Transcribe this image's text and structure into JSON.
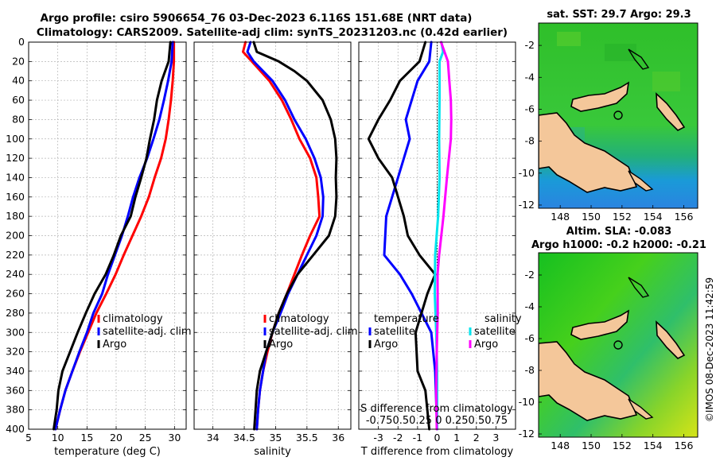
{
  "header": {
    "line1": "Argo profile: csiro 5906654_76 03-Dec-2023 6.116S 151.68E (NRT data)",
    "line2": "Climatology: CARS2009. Satellite-adj clim: synTS_20231203.nc (0.42d earlier)"
  },
  "legend_profile": {
    "clim": "climatology",
    "sat": "satellite-adj. clim",
    "argo": "Argo"
  },
  "legend_diff": {
    "temp_title": "temperature",
    "sal_title": "salinity",
    "satellite": "satellite",
    "argo": "Argo"
  },
  "diff_top_label": "S difference from climatology",
  "diff_top_ticks": "-0.750.50.25 0  0.250.50.75",
  "right": {
    "sst_title": "sat. SST: 29.7 Argo: 29.3",
    "sla_title1": "Altim. SLA: -0.083",
    "sla_title2": "Argo h1000: -0.2 h2000: -0.21"
  },
  "watermark": "©IMOS 08-Dec-2023 11:42:59",
  "colors": {
    "clim": "#ff0000",
    "sat": "#0000ff",
    "argo": "#000000",
    "sal_sat": "#00e5ee",
    "sal_argo": "#ff00ff",
    "land": "#f4c79a"
  },
  "chart_data": [
    {
      "type": "line",
      "xlabel": "temperature (deg C)",
      "ylabel": "",
      "xlim": [
        5,
        32
      ],
      "ylim": [
        400,
        0
      ],
      "xticks": [
        5,
        10,
        15,
        20,
        25,
        30
      ],
      "yticks": [
        0,
        20,
        40,
        60,
        80,
        100,
        120,
        140,
        160,
        180,
        200,
        220,
        240,
        260,
        280,
        300,
        320,
        340,
        360,
        380,
        400
      ],
      "series": [
        {
          "name": "climatology",
          "color": "#ff0000",
          "points": [
            [
              29.9,
              0
            ],
            [
              29.9,
              20
            ],
            [
              29.7,
              40
            ],
            [
              29.4,
              60
            ],
            [
              29.0,
              80
            ],
            [
              28.5,
              100
            ],
            [
              27.7,
              120
            ],
            [
              26.6,
              140
            ],
            [
              25.6,
              160
            ],
            [
              24.3,
              180
            ],
            [
              22.8,
              200
            ],
            [
              21.3,
              220
            ],
            [
              19.9,
              240
            ],
            [
              18.3,
              260
            ],
            [
              16.6,
              280
            ],
            [
              15.2,
              300
            ],
            [
              13.8,
              320
            ],
            [
              12.5,
              340
            ],
            [
              11.3,
              360
            ],
            [
              10.4,
              380
            ],
            [
              9.6,
              400
            ]
          ]
        },
        {
          "name": "satellite-adj. clim",
          "color": "#0000ff",
          "points": [
            [
              29.7,
              0
            ],
            [
              29.5,
              20
            ],
            [
              28.9,
              40
            ],
            [
              28.2,
              60
            ],
            [
              27.4,
              80
            ],
            [
              26.4,
              100
            ],
            [
              25.3,
              120
            ],
            [
              24.0,
              140
            ],
            [
              22.9,
              160
            ],
            [
              22.0,
              180
            ],
            [
              21.0,
              200
            ],
            [
              19.8,
              220
            ],
            [
              18.6,
              240
            ],
            [
              17.6,
              260
            ],
            [
              16.1,
              280
            ],
            [
              15.0,
              300
            ],
            [
              13.7,
              320
            ],
            [
              12.5,
              340
            ],
            [
              11.3,
              360
            ],
            [
              10.4,
              380
            ],
            [
              9.6,
              400
            ]
          ]
        },
        {
          "name": "Argo",
          "color": "#000000",
          "points": [
            [
              29.3,
              0
            ],
            [
              29.0,
              20
            ],
            [
              27.8,
              40
            ],
            [
              27.0,
              60
            ],
            [
              26.5,
              80
            ],
            [
              25.8,
              100
            ],
            [
              25.2,
              120
            ],
            [
              24.3,
              140
            ],
            [
              23.3,
              160
            ],
            [
              22.5,
              180
            ],
            [
              20.8,
              200
            ],
            [
              19.6,
              220
            ],
            [
              18.2,
              240
            ],
            [
              16.3,
              260
            ],
            [
              14.8,
              280
            ],
            [
              13.4,
              300
            ],
            [
              12.1,
              320
            ],
            [
              10.8,
              340
            ],
            [
              10.1,
              360
            ],
            [
              9.8,
              380
            ],
            [
              9.3,
              400
            ]
          ]
        }
      ]
    },
    {
      "type": "line",
      "xlabel": "salinity",
      "xlim": [
        33.7,
        36.2
      ],
      "ylim": [
        400,
        0
      ],
      "xticks": [
        34,
        34.5,
        35,
        35.5,
        36
      ],
      "series": [
        {
          "name": "climatology",
          "color": "#ff0000",
          "points": [
            [
              34.52,
              0
            ],
            [
              34.48,
              10
            ],
            [
              34.62,
              20
            ],
            [
              34.9,
              40
            ],
            [
              35.1,
              60
            ],
            [
              35.25,
              80
            ],
            [
              35.38,
              100
            ],
            [
              35.55,
              120
            ],
            [
              35.65,
              140
            ],
            [
              35.68,
              160
            ],
            [
              35.7,
              180
            ],
            [
              35.55,
              200
            ],
            [
              35.42,
              220
            ],
            [
              35.3,
              240
            ],
            [
              35.18,
              260
            ],
            [
              35.05,
              280
            ],
            [
              34.95,
              300
            ],
            [
              34.87,
              320
            ],
            [
              34.8,
              340
            ],
            [
              34.75,
              360
            ],
            [
              34.72,
              380
            ],
            [
              34.7,
              400
            ]
          ]
        },
        {
          "name": "satellite-adj. clim",
          "color": "#0000ff",
          "points": [
            [
              34.6,
              0
            ],
            [
              34.55,
              10
            ],
            [
              34.65,
              20
            ],
            [
              34.95,
              40
            ],
            [
              35.15,
              60
            ],
            [
              35.3,
              80
            ],
            [
              35.48,
              100
            ],
            [
              35.62,
              120
            ],
            [
              35.72,
              140
            ],
            [
              35.76,
              160
            ],
            [
              35.75,
              180
            ],
            [
              35.65,
              200
            ],
            [
              35.5,
              220
            ],
            [
              35.35,
              240
            ],
            [
              35.2,
              260
            ],
            [
              35.08,
              280
            ],
            [
              34.95,
              300
            ],
            [
              34.85,
              320
            ],
            [
              34.8,
              340
            ],
            [
              34.75,
              360
            ],
            [
              34.72,
              380
            ],
            [
              34.7,
              400
            ]
          ]
        },
        {
          "name": "Argo",
          "color": "#000000",
          "points": [
            [
              34.65,
              0
            ],
            [
              34.7,
              10
            ],
            [
              35.05,
              20
            ],
            [
              35.3,
              30
            ],
            [
              35.5,
              40
            ],
            [
              35.75,
              60
            ],
            [
              35.88,
              80
            ],
            [
              35.95,
              100
            ],
            [
              35.97,
              120
            ],
            [
              35.96,
              140
            ],
            [
              35.97,
              160
            ],
            [
              35.95,
              180
            ],
            [
              35.85,
              200
            ],
            [
              35.6,
              220
            ],
            [
              35.35,
              240
            ],
            [
              35.18,
              260
            ],
            [
              35.05,
              280
            ],
            [
              34.95,
              300
            ],
            [
              34.85,
              320
            ],
            [
              34.75,
              340
            ],
            [
              34.7,
              360
            ],
            [
              34.68,
              380
            ],
            [
              34.66,
              400
            ]
          ]
        }
      ]
    },
    {
      "type": "line",
      "xlabel": "T difference from climatology",
      "xlim": [
        -4,
        4
      ],
      "ylim": [
        400,
        0
      ],
      "xticks": [
        -3,
        -2,
        -1,
        0,
        1,
        2,
        3
      ],
      "series": [
        {
          "name": "temperature satellite",
          "color": "#0000ff",
          "points": [
            [
              -0.3,
              0
            ],
            [
              -0.4,
              20
            ],
            [
              -1.0,
              40
            ],
            [
              -1.3,
              60
            ],
            [
              -1.6,
              80
            ],
            [
              -1.4,
              100
            ],
            [
              -2.0,
              140
            ],
            [
              -2.6,
              180
            ],
            [
              -2.7,
              220
            ],
            [
              -1.9,
              240
            ],
            [
              -1.3,
              260
            ],
            [
              -0.8,
              280
            ],
            [
              -0.3,
              300
            ],
            [
              -0.1,
              340
            ],
            [
              0,
              400
            ]
          ]
        },
        {
          "name": "temperature Argo",
          "color": "#000000",
          "points": [
            [
              -0.6,
              0
            ],
            [
              -0.9,
              20
            ],
            [
              -1.9,
              40
            ],
            [
              -2.4,
              60
            ],
            [
              -3.0,
              80
            ],
            [
              -3.5,
              100
            ],
            [
              -3.0,
              120
            ],
            [
              -2.3,
              140
            ],
            [
              -2.0,
              160
            ],
            [
              -1.7,
              180
            ],
            [
              -1.5,
              200
            ],
            [
              -0.9,
              220
            ],
            [
              -0.1,
              240
            ],
            [
              -0.5,
              260
            ],
            [
              -1.1,
              300
            ],
            [
              -1.0,
              340
            ],
            [
              -0.6,
              360
            ],
            [
              -0.4,
              400
            ]
          ]
        },
        {
          "name": "salinity satellite",
          "color": "#00e5ee",
          "points": [
            [
              0.22,
              0
            ],
            [
              0.3,
              10
            ],
            [
              0.12,
              20
            ],
            [
              0.12,
              60
            ],
            [
              0.1,
              100
            ],
            [
              0.12,
              140
            ],
            [
              0.05,
              180
            ],
            [
              -0.1,
              220
            ],
            [
              -0.12,
              260
            ],
            [
              -0.05,
              300
            ],
            [
              0,
              340
            ],
            [
              0,
              400
            ]
          ]
        },
        {
          "name": "salinity Argo",
          "color": "#ff00ff",
          "points": [
            [
              0.2,
              0
            ],
            [
              0.55,
              20
            ],
            [
              0.62,
              40
            ],
            [
              0.7,
              60
            ],
            [
              0.72,
              80
            ],
            [
              0.7,
              100
            ],
            [
              0.5,
              140
            ],
            [
              0.32,
              180
            ],
            [
              0.1,
              220
            ],
            [
              0.02,
              240
            ],
            [
              0.03,
              280
            ],
            [
              -0.02,
              320
            ],
            [
              -0.05,
              360
            ],
            [
              -0.02,
              400
            ]
          ]
        }
      ]
    },
    {
      "type": "heatmap",
      "title": "sat. SST: 29.7 Argo: 29.3",
      "xlim": [
        146.6,
        156.9
      ],
      "ylim": [
        -12.2,
        -0.6
      ],
      "xticks": [
        148,
        150,
        152,
        154,
        156
      ],
      "yticks": [
        -2,
        -4,
        -6,
        -8,
        -10,
        -12
      ]
    },
    {
      "type": "heatmap",
      "title": "Altim. SLA: -0.083",
      "xlim": [
        146.6,
        156.9
      ],
      "ylim": [
        -12.2,
        -0.6
      ],
      "xticks": [
        148,
        150,
        152,
        154,
        156
      ],
      "yticks": [
        -2,
        -4,
        -6,
        -8,
        -10,
        -12
      ]
    }
  ]
}
